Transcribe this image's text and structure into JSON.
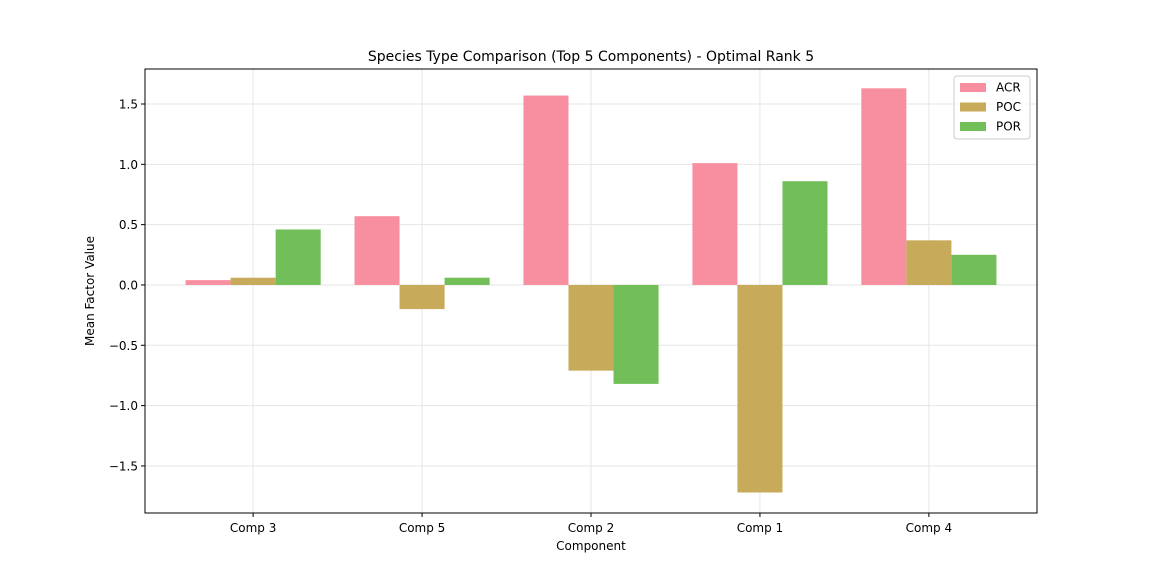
{
  "chart_data": {
    "type": "bar",
    "title": "Species Type Comparison (Top 5 Components) - Optimal Rank 5",
    "xlabel": "Component",
    "ylabel": "Mean Factor Value",
    "categories": [
      "Comp 3",
      "Comp 5",
      "Comp 2",
      "Comp 1",
      "Comp 4"
    ],
    "series": [
      {
        "name": "ACR",
        "color": "#f88fa0",
        "values": [
          0.04,
          0.57,
          1.57,
          1.01,
          1.63
        ]
      },
      {
        "name": "POC",
        "color": "#c7aa5a",
        "values": [
          0.06,
          -0.2,
          -0.71,
          -1.72,
          0.37
        ]
      },
      {
        "name": "POR",
        "color": "#72bf5a",
        "values": [
          0.46,
          0.06,
          -0.82,
          0.86,
          0.25
        ]
      }
    ],
    "ylim": [
      -1.89,
      1.79
    ],
    "yticks": [
      -1.5,
      -1.0,
      -0.5,
      0.0,
      0.5,
      1.0,
      1.5
    ],
    "ytick_labels": [
      "−1.5",
      "−1.0",
      "−0.5",
      "0.0",
      "0.5",
      "1.0",
      "1.5"
    ],
    "grid": true,
    "legend": "top-right"
  }
}
